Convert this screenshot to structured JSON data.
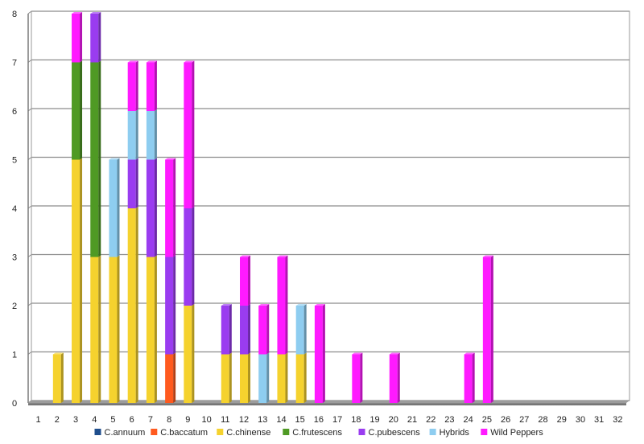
{
  "chart_data": {
    "type": "bar",
    "stacked": true,
    "title": "",
    "xlabel": "",
    "ylabel": "",
    "ylim": [
      0,
      8
    ],
    "grid": true,
    "legend_position": "bottom",
    "categories": [
      "1",
      "2",
      "3",
      "4",
      "5",
      "6",
      "7",
      "8",
      "9",
      "10",
      "11",
      "12",
      "13",
      "14",
      "15",
      "16",
      "17",
      "18",
      "19",
      "20",
      "21",
      "22",
      "23",
      "24",
      "25",
      "26",
      "27",
      "28",
      "29",
      "30",
      "31",
      "32"
    ],
    "series": [
      {
        "name": "C.annuum",
        "color": "#1f4e8c",
        "values": [
          0,
          0,
          0,
          0,
          0,
          0,
          0,
          0,
          0,
          0,
          0,
          0,
          0,
          0,
          0,
          0,
          0,
          0,
          0,
          0,
          0,
          0,
          0,
          0,
          0,
          0,
          0,
          0,
          0,
          0,
          0,
          0
        ]
      },
      {
        "name": "C.baccatum",
        "color": "#ff5a1f",
        "values": [
          0,
          0,
          0,
          0,
          0,
          0,
          0,
          1,
          0,
          0,
          0,
          0,
          0,
          0,
          0,
          0,
          0,
          0,
          0,
          0,
          0,
          0,
          0,
          0,
          0,
          0,
          0,
          0,
          0,
          0,
          0,
          0
        ]
      },
      {
        "name": "C.chinense",
        "color": "#f5d22e",
        "values": [
          0,
          1,
          5,
          3,
          3,
          4,
          3,
          0,
          2,
          0,
          1,
          1,
          0,
          1,
          1,
          0,
          0,
          0,
          0,
          0,
          0,
          0,
          0,
          0,
          0,
          0,
          0,
          0,
          0,
          0,
          0,
          0
        ]
      },
      {
        "name": "C.frutescens",
        "color": "#4f9a24",
        "values": [
          0,
          0,
          2,
          4,
          0,
          0,
          0,
          0,
          0,
          0,
          0,
          0,
          0,
          0,
          0,
          0,
          0,
          0,
          0,
          0,
          0,
          0,
          0,
          0,
          0,
          0,
          0,
          0,
          0,
          0,
          0,
          0
        ]
      },
      {
        "name": "C.pubescens",
        "color": "#9a3cf0",
        "values": [
          0,
          0,
          0,
          1,
          0,
          1,
          2,
          2,
          2,
          0,
          1,
          1,
          0,
          0,
          0,
          0,
          0,
          0,
          0,
          0,
          0,
          0,
          0,
          0,
          0,
          0,
          0,
          0,
          0,
          0,
          0,
          0
        ]
      },
      {
        "name": "Hybrids",
        "color": "#8ecdf0",
        "values": [
          0,
          0,
          0,
          0,
          2,
          1,
          1,
          0,
          0,
          0,
          0,
          0,
          1,
          0,
          1,
          0,
          0,
          0,
          0,
          0,
          0,
          0,
          0,
          0,
          0,
          0,
          0,
          0,
          0,
          0,
          0,
          0
        ]
      },
      {
        "name": "Wild Peppers",
        "color": "#ff1aff",
        "values": [
          0,
          0,
          1,
          0,
          0,
          1,
          1,
          2,
          3,
          0,
          0,
          1,
          1,
          2,
          0,
          2,
          0,
          1,
          0,
          1,
          0,
          0,
          0,
          1,
          3,
          0,
          0,
          0,
          0,
          0,
          0,
          0
        ]
      }
    ],
    "yticks": [
      "0",
      "1",
      "2",
      "3",
      "4",
      "5",
      "6",
      "7",
      "8"
    ]
  }
}
